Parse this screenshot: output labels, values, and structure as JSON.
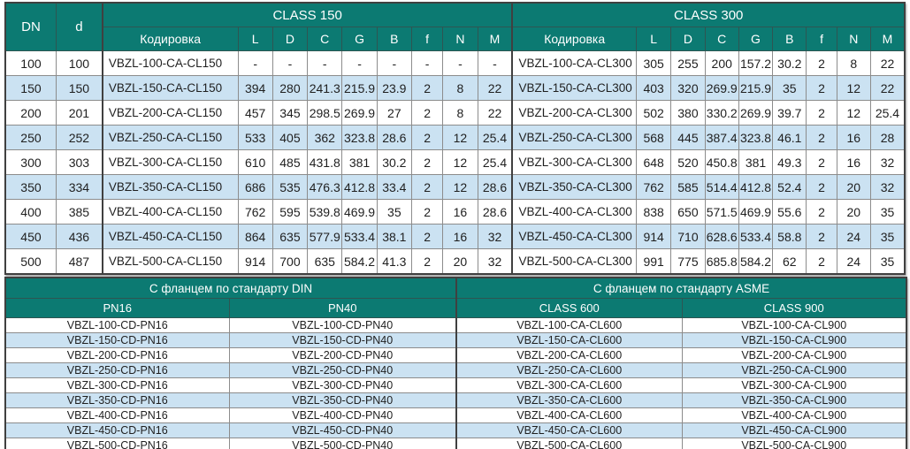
{
  "top_table": {
    "corner_headers": {
      "dn": "DN",
      "d": "d"
    },
    "class150_title": "CLASS 150",
    "class300_title": "CLASS 300",
    "sub_headers": [
      "Кодировка",
      "L",
      "D",
      "C",
      "G",
      "B",
      "f",
      "N",
      "M"
    ],
    "rows": [
      {
        "dn": "100",
        "d": "100",
        "c150": [
          "VBZL-100-CA-CL150",
          "-",
          "-",
          "-",
          "-",
          "-",
          "-",
          "-",
          "-"
        ],
        "c300": [
          "VBZL-100-CA-CL300",
          "305",
          "255",
          "200",
          "157.2",
          "30.2",
          "2",
          "8",
          "22"
        ]
      },
      {
        "dn": "150",
        "d": "150",
        "c150": [
          "VBZL-150-CA-CL150",
          "394",
          "280",
          "241.3",
          "215.9",
          "23.9",
          "2",
          "8",
          "22"
        ],
        "c300": [
          "VBZL-150-CA-CL300",
          "403",
          "320",
          "269.9",
          "215.9",
          "35",
          "2",
          "12",
          "22"
        ]
      },
      {
        "dn": "200",
        "d": "201",
        "c150": [
          "VBZL-200-CA-CL150",
          "457",
          "345",
          "298.5",
          "269.9",
          "27",
          "2",
          "8",
          "22"
        ],
        "c300": [
          "VBZL-200-CA-CL300",
          "502",
          "380",
          "330.2",
          "269.9",
          "39.7",
          "2",
          "12",
          "25.4"
        ]
      },
      {
        "dn": "250",
        "d": "252",
        "c150": [
          "VBZL-250-CA-CL150",
          "533",
          "405",
          "362",
          "323.8",
          "28.6",
          "2",
          "12",
          "25.4"
        ],
        "c300": [
          "VBZL-250-CA-CL300",
          "568",
          "445",
          "387.4",
          "323.8",
          "46.1",
          "2",
          "16",
          "28"
        ]
      },
      {
        "dn": "300",
        "d": "303",
        "c150": [
          "VBZL-300-CA-CL150",
          "610",
          "485",
          "431.8",
          "381",
          "30.2",
          "2",
          "12",
          "25.4"
        ],
        "c300": [
          "VBZL-300-CA-CL300",
          "648",
          "520",
          "450.8",
          "381",
          "49.3",
          "2",
          "16",
          "32"
        ]
      },
      {
        "dn": "350",
        "d": "334",
        "c150": [
          "VBZL-350-CA-CL150",
          "686",
          "535",
          "476.3",
          "412.8",
          "33.4",
          "2",
          "12",
          "28.6"
        ],
        "c300": [
          "VBZL-350-CA-CL300",
          "762",
          "585",
          "514.4",
          "412.8",
          "52.4",
          "2",
          "20",
          "32"
        ]
      },
      {
        "dn": "400",
        "d": "385",
        "c150": [
          "VBZL-400-CA-CL150",
          "762",
          "595",
          "539.8",
          "469.9",
          "35",
          "2",
          "16",
          "28.6"
        ],
        "c300": [
          "VBZL-400-CA-CL300",
          "838",
          "650",
          "571.5",
          "469.9",
          "55.6",
          "2",
          "20",
          "35"
        ]
      },
      {
        "dn": "450",
        "d": "436",
        "c150": [
          "VBZL-450-CA-CL150",
          "864",
          "635",
          "577.9",
          "533.4",
          "38.1",
          "2",
          "16",
          "32"
        ],
        "c300": [
          "VBZL-450-CA-CL300",
          "914",
          "710",
          "628.6",
          "533.4",
          "58.8",
          "2",
          "24",
          "35"
        ]
      },
      {
        "dn": "500",
        "d": "487",
        "c150": [
          "VBZL-500-CA-CL150",
          "914",
          "700",
          "635",
          "584.2",
          "41.3",
          "2",
          "20",
          "32"
        ],
        "c300": [
          "VBZL-500-CA-CL300",
          "991",
          "775",
          "685.8",
          "584.2",
          "62",
          "2",
          "24",
          "35"
        ]
      }
    ]
  },
  "bottom_table": {
    "din_title": "С фланцем по стандарту DIN",
    "asme_title": "С фланцем по стандарту ASME",
    "sub_headers": [
      "PN16",
      "PN40",
      "CLASS 600",
      "CLASS 900"
    ],
    "rows": [
      [
        "VBZL-100-CD-PN16",
        "VBZL-100-CD-PN40",
        "VBZL-100-CA-CL600",
        "VBZL-100-CA-CL900"
      ],
      [
        "VBZL-150-CD-PN16",
        "VBZL-150-CD-PN40",
        "VBZL-150-CA-CL600",
        "VBZL-150-CA-CL900"
      ],
      [
        "VBZL-200-CD-PN16",
        "VBZL-200-CD-PN40",
        "VBZL-200-CA-CL600",
        "VBZL-200-CA-CL900"
      ],
      [
        "VBZL-250-CD-PN16",
        "VBZL-250-CD-PN40",
        "VBZL-250-CA-CL600",
        "VBZL-250-CA-CL900"
      ],
      [
        "VBZL-300-CD-PN16",
        "VBZL-300-CD-PN40",
        "VBZL-300-CA-CL600",
        "VBZL-300-CA-CL900"
      ],
      [
        "VBZL-350-CD-PN16",
        "VBZL-350-CD-PN40",
        "VBZL-350-CA-CL600",
        "VBZL-350-CA-CL900"
      ],
      [
        "VBZL-400-CD-PN16",
        "VBZL-400-CD-PN40",
        "VBZL-400-CA-CL600",
        "VBZL-400-CA-CL900"
      ],
      [
        "VBZL-450-CD-PN16",
        "VBZL-450-CD-PN40",
        "VBZL-450-CA-CL600",
        "VBZL-450-CA-CL900"
      ],
      [
        "VBZL-500-CD-PN16",
        "VBZL-500-CD-PN40",
        "VBZL-500-CA-CL600",
        "VBZL-500-CA-CL900"
      ]
    ]
  },
  "colors": {
    "header_teal": "#0C7A72",
    "row_alt_blue": "#CBE2F2",
    "border_dark": "#404040",
    "border_light": "#8C8C8C",
    "header_text": "#FFFFFF",
    "body_text": "#1F1F1F"
  }
}
